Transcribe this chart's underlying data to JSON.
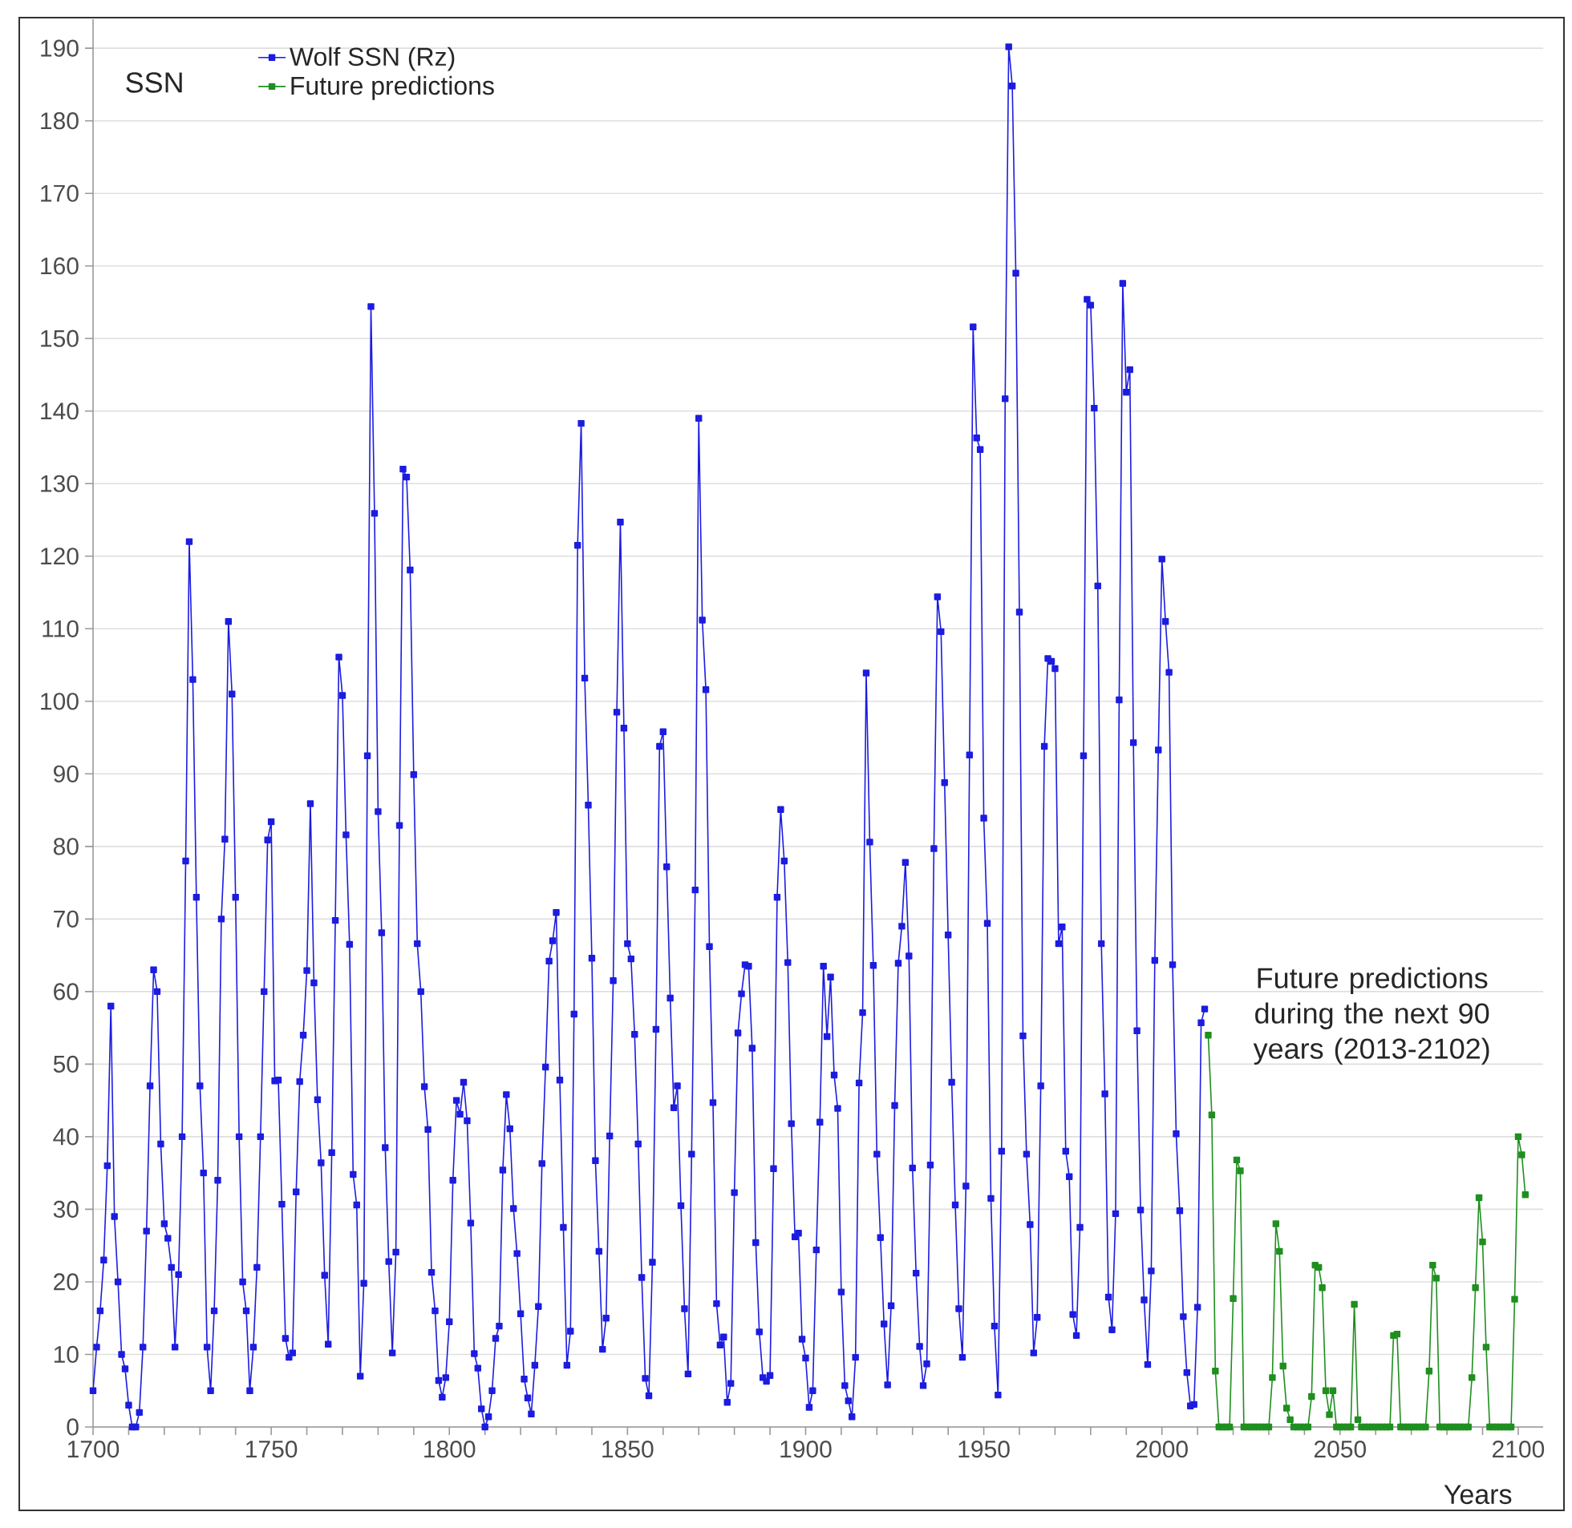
{
  "chart_data": {
    "type": "line",
    "xlabel": "Years",
    "ylabel": "SSN",
    "annotations": [
      "Future predictions during the next 90 years (2013-2102)"
    ],
    "xlim": [
      1700,
      2107
    ],
    "ylim": [
      0,
      194
    ],
    "xticks": [
      1700,
      {
        "value": 1710,
        "label": null
      },
      {
        "value": 1720,
        "label": null
      },
      {
        "value": 1730,
        "label": null
      },
      {
        "value": 1740,
        "label": null
      },
      1750,
      {
        "value": 1760,
        "label": null
      },
      {
        "value": 1770,
        "label": null
      },
      {
        "value": 1780,
        "label": null
      },
      {
        "value": 1790,
        "label": null
      },
      1800,
      {
        "value": 1810,
        "label": null
      },
      {
        "value": 1820,
        "label": null
      },
      {
        "value": 1830,
        "label": null
      },
      {
        "value": 1840,
        "label": null
      },
      1850,
      {
        "value": 1860,
        "label": null
      },
      {
        "value": 1870,
        "label": null
      },
      {
        "value": 1880,
        "label": null
      },
      {
        "value": 1890,
        "label": null
      },
      1900,
      {
        "value": 1910,
        "label": null
      },
      {
        "value": 1920,
        "label": null
      },
      {
        "value": 1930,
        "label": null
      },
      {
        "value": 1940,
        "label": null
      },
      1950,
      {
        "value": 1960,
        "label": null
      },
      {
        "value": 1970,
        "label": null
      },
      {
        "value": 1980,
        "label": null
      },
      {
        "value": 1990,
        "label": null
      },
      2000,
      {
        "value": 2010,
        "label": null
      },
      {
        "value": 2020,
        "label": null
      },
      {
        "value": 2030,
        "label": null
      },
      {
        "value": 2040,
        "label": null
      },
      2050,
      {
        "value": 2060,
        "label": null
      },
      {
        "value": 2070,
        "label": null
      },
      {
        "value": 2080,
        "label": null
      },
      {
        "value": 2090,
        "label": null
      },
      2100
    ],
    "yticks": [
      0,
      10,
      20,
      30,
      40,
      50,
      60,
      70,
      80,
      90,
      100,
      110,
      120,
      130,
      140,
      150,
      160,
      170,
      180,
      190
    ],
    "grid": "y",
    "legend": "top left",
    "marker": "square",
    "line_style": "solid",
    "series": [
      {
        "name": "Wolf SSN (Rz)",
        "color": "#1c1ce0",
        "x": [
          1700,
          1701,
          1702,
          1703,
          1704,
          1705,
          1706,
          1707,
          1708,
          1709,
          1710,
          1711,
          1712,
          1713,
          1714,
          1715,
          1716,
          1717,
          1718,
          1719,
          1720,
          1721,
          1722,
          1723,
          1724,
          1725,
          1726,
          1727,
          1728,
          1729,
          1730,
          1731,
          1732,
          1733,
          1734,
          1735,
          1736,
          1737,
          1738,
          1739,
          1740,
          1741,
          1742,
          1743,
          1744,
          1745,
          1746,
          1747,
          1748,
          1749,
          1750,
          1751,
          1752,
          1753,
          1754,
          1755,
          1756,
          1757,
          1758,
          1759,
          1760,
          1761,
          1762,
          1763,
          1764,
          1765,
          1766,
          1767,
          1768,
          1769,
          1770,
          1771,
          1772,
          1773,
          1774,
          1775,
          1776,
          1777,
          1778,
          1779,
          1780,
          1781,
          1782,
          1783,
          1784,
          1785,
          1786,
          1787,
          1788,
          1789,
          1790,
          1791,
          1792,
          1793,
          1794,
          1795,
          1796,
          1797,
          1798,
          1799,
          1800,
          1801,
          1802,
          1803,
          1804,
          1805,
          1806,
          1807,
          1808,
          1809,
          1810,
          1811,
          1812,
          1813,
          1814,
          1815,
          1816,
          1817,
          1818,
          1819,
          1820,
          1821,
          1822,
          1823,
          1824,
          1825,
          1826,
          1827,
          1828,
          1829,
          1830,
          1831,
          1832,
          1833,
          1834,
          1835,
          1836,
          1837,
          1838,
          1839,
          1840,
          1841,
          1842,
          1843,
          1844,
          1845,
          1846,
          1847,
          1848,
          1849,
          1850,
          1851,
          1852,
          1853,
          1854,
          1855,
          1856,
          1857,
          1858,
          1859,
          1860,
          1861,
          1862,
          1863,
          1864,
          1865,
          1866,
          1867,
          1868,
          1869,
          1870,
          1871,
          1872,
          1873,
          1874,
          1875,
          1876,
          1877,
          1878,
          1879,
          1880,
          1881,
          1882,
          1883,
          1884,
          1885,
          1886,
          1887,
          1888,
          1889,
          1890,
          1891,
          1892,
          1893,
          1894,
          1895,
          1896,
          1897,
          1898,
          1899,
          1900,
          1901,
          1902,
          1903,
          1904,
          1905,
          1906,
          1907,
          1908,
          1909,
          1910,
          1911,
          1912,
          1913,
          1914,
          1915,
          1916,
          1917,
          1918,
          1919,
          1920,
          1921,
          1922,
          1923,
          1924,
          1925,
          1926,
          1927,
          1928,
          1929,
          1930,
          1931,
          1932,
          1933,
          1934,
          1935,
          1936,
          1937,
          1938,
          1939,
          1940,
          1941,
          1942,
          1943,
          1944,
          1945,
          1946,
          1947,
          1948,
          1949,
          1950,
          1951,
          1952,
          1953,
          1954,
          1955,
          1956,
          1957,
          1958,
          1959,
          1960,
          1961,
          1962,
          1963,
          1964,
          1965,
          1966,
          1967,
          1968,
          1969,
          1970,
          1971,
          1972,
          1973,
          1974,
          1975,
          1976,
          1977,
          1978,
          1979,
          1980,
          1981,
          1982,
          1983,
          1984,
          1985,
          1986,
          1987,
          1988,
          1989,
          1990,
          1991,
          1992,
          1993,
          1994,
          1995,
          1996,
          1997,
          1998,
          1999,
          2000,
          2001,
          2002,
          2003,
          2004,
          2005,
          2006,
          2007,
          2008,
          2009,
          2010,
          2011,
          2012
        ],
        "values": [
          5,
          11,
          16,
          23,
          36,
          58,
          29,
          20,
          10,
          8,
          3,
          0,
          0,
          2,
          11,
          27,
          47,
          63,
          60,
          39,
          28,
          26,
          22,
          11,
          21,
          40,
          78,
          122,
          103,
          73,
          47,
          35,
          11,
          5,
          16,
          34,
          70,
          81,
          111,
          101,
          73,
          40,
          20,
          16,
          5,
          11,
          22,
          40,
          60,
          80.9,
          83.4,
          47.7,
          47.8,
          30.7,
          12.2,
          9.6,
          10.2,
          32.4,
          47.6,
          54,
          62.9,
          85.9,
          61.2,
          45.1,
          36.4,
          20.9,
          11.4,
          37.8,
          69.8,
          106.1,
          100.8,
          81.6,
          66.5,
          34.8,
          30.6,
          7,
          19.8,
          92.5,
          154.4,
          125.9,
          84.8,
          68.1,
          38.5,
          22.8,
          10.2,
          24.1,
          82.9,
          132,
          130.9,
          118.1,
          89.9,
          66.6,
          60,
          46.9,
          41,
          21.3,
          16,
          6.4,
          4.1,
          6.8,
          14.5,
          34,
          45,
          43.1,
          47.5,
          42.2,
          28.1,
          10.1,
          8.1,
          2.5,
          0,
          1.4,
          5,
          12.2,
          13.9,
          35.4,
          45.8,
          41.1,
          30.1,
          23.9,
          15.6,
          6.6,
          4,
          1.8,
          8.5,
          16.6,
          36.3,
          49.6,
          64.2,
          67,
          70.9,
          47.8,
          27.5,
          8.5,
          13.2,
          56.9,
          121.5,
          138.3,
          103.2,
          85.7,
          64.6,
          36.7,
          24.2,
          10.7,
          15,
          40.1,
          61.5,
          98.5,
          124.7,
          96.3,
          66.6,
          64.5,
          54.1,
          39,
          20.6,
          6.7,
          4.3,
          22.7,
          54.8,
          93.8,
          95.8,
          77.2,
          59.1,
          44,
          47,
          30.5,
          16.3,
          7.3,
          37.6,
          74,
          139,
          111.2,
          101.6,
          66.2,
          44.7,
          17,
          11.3,
          12.4,
          3.4,
          6,
          32.3,
          54.3,
          59.7,
          63.7,
          63.5,
          52.2,
          25.4,
          13.1,
          6.8,
          6.3,
          7.1,
          35.6,
          73,
          85.1,
          78,
          64,
          41.8,
          26.2,
          26.7,
          12.1,
          9.5,
          2.7,
          5,
          24.4,
          42,
          63.5,
          53.8,
          62,
          48.5,
          43.9,
          18.6,
          5.7,
          3.6,
          1.4,
          9.6,
          47.4,
          57.1,
          103.9,
          80.6,
          63.6,
          37.6,
          26.1,
          14.2,
          5.8,
          16.7,
          44.3,
          63.9,
          69,
          77.8,
          64.9,
          35.7,
          21.2,
          11.1,
          5.7,
          8.7,
          36.1,
          79.7,
          114.4,
          109.6,
          88.8,
          67.8,
          47.5,
          30.6,
          16.3,
          9.6,
          33.2,
          92.6,
          151.6,
          136.3,
          134.7,
          83.9,
          69.4,
          31.5,
          13.9,
          4.4,
          38,
          141.7,
          190.2,
          184.8,
          159,
          112.3,
          53.9,
          37.6,
          27.9,
          10.2,
          15.1,
          47,
          93.8,
          105.9,
          105.5,
          104.5,
          66.6,
          68.9,
          38,
          34.5,
          15.5,
          12.6,
          27.5,
          92.5,
          155.4,
          154.6,
          140.4,
          115.9,
          66.6,
          45.9,
          17.9,
          13.4,
          29.4,
          100.2,
          157.6,
          142.6,
          145.7,
          94.3,
          54.6,
          29.9,
          17.5,
          8.6,
          21.5,
          64.3,
          93.3,
          119.6,
          111,
          104,
          63.7,
          40.4,
          29.8,
          15.2,
          7.5,
          2.9,
          3.1,
          16.5,
          55.7,
          57.6
        ]
      },
      {
        "name": "Future predictions",
        "color": "#1f8f1f",
        "x": [
          2013,
          2014,
          2015,
          2016,
          2017,
          2018,
          2019,
          2020,
          2021,
          2022,
          2023,
          2024,
          2025,
          2026,
          2027,
          2028,
          2029,
          2030,
          2031,
          2032,
          2033,
          2034,
          2035,
          2036,
          2037,
          2038,
          2039,
          2040,
          2041,
          2042,
          2043,
          2044,
          2045,
          2046,
          2047,
          2048,
          2049,
          2050,
          2051,
          2052,
          2053,
          2054,
          2055,
          2056,
          2057,
          2058,
          2059,
          2060,
          2061,
          2062,
          2063,
          2064,
          2065,
          2066,
          2067,
          2068,
          2069,
          2070,
          2071,
          2072,
          2073,
          2074,
          2075,
          2076,
          2077,
          2078,
          2079,
          2080,
          2081,
          2082,
          2083,
          2084,
          2085,
          2086,
          2087,
          2088,
          2089,
          2090,
          2091,
          2092,
          2093,
          2094,
          2095,
          2096,
          2097,
          2098,
          2099,
          2100,
          2101,
          2102
        ],
        "values": [
          54,
          43,
          7.7,
          0,
          0,
          0,
          0,
          17.7,
          36.8,
          35.3,
          0,
          0,
          0,
          0,
          0,
          0,
          0,
          0,
          6.8,
          28,
          24.2,
          8.4,
          2.6,
          1,
          0,
          0,
          0,
          0,
          0,
          4.2,
          22.3,
          22,
          19.2,
          5,
          1.7,
          5,
          0,
          0,
          0,
          0,
          0,
          16.9,
          1,
          0,
          0,
          0,
          0,
          0,
          0,
          0,
          0,
          0,
          12.6,
          12.8,
          0,
          0,
          0,
          0,
          0,
          0,
          0,
          0,
          7.7,
          22.3,
          20.5,
          0,
          0,
          0,
          0,
          0,
          0,
          0,
          0,
          0,
          6.8,
          19.2,
          31.6,
          25.5,
          11,
          0,
          0,
          0,
          0,
          0,
          0,
          0,
          17.6,
          40,
          37.5,
          32
        ]
      }
    ]
  }
}
